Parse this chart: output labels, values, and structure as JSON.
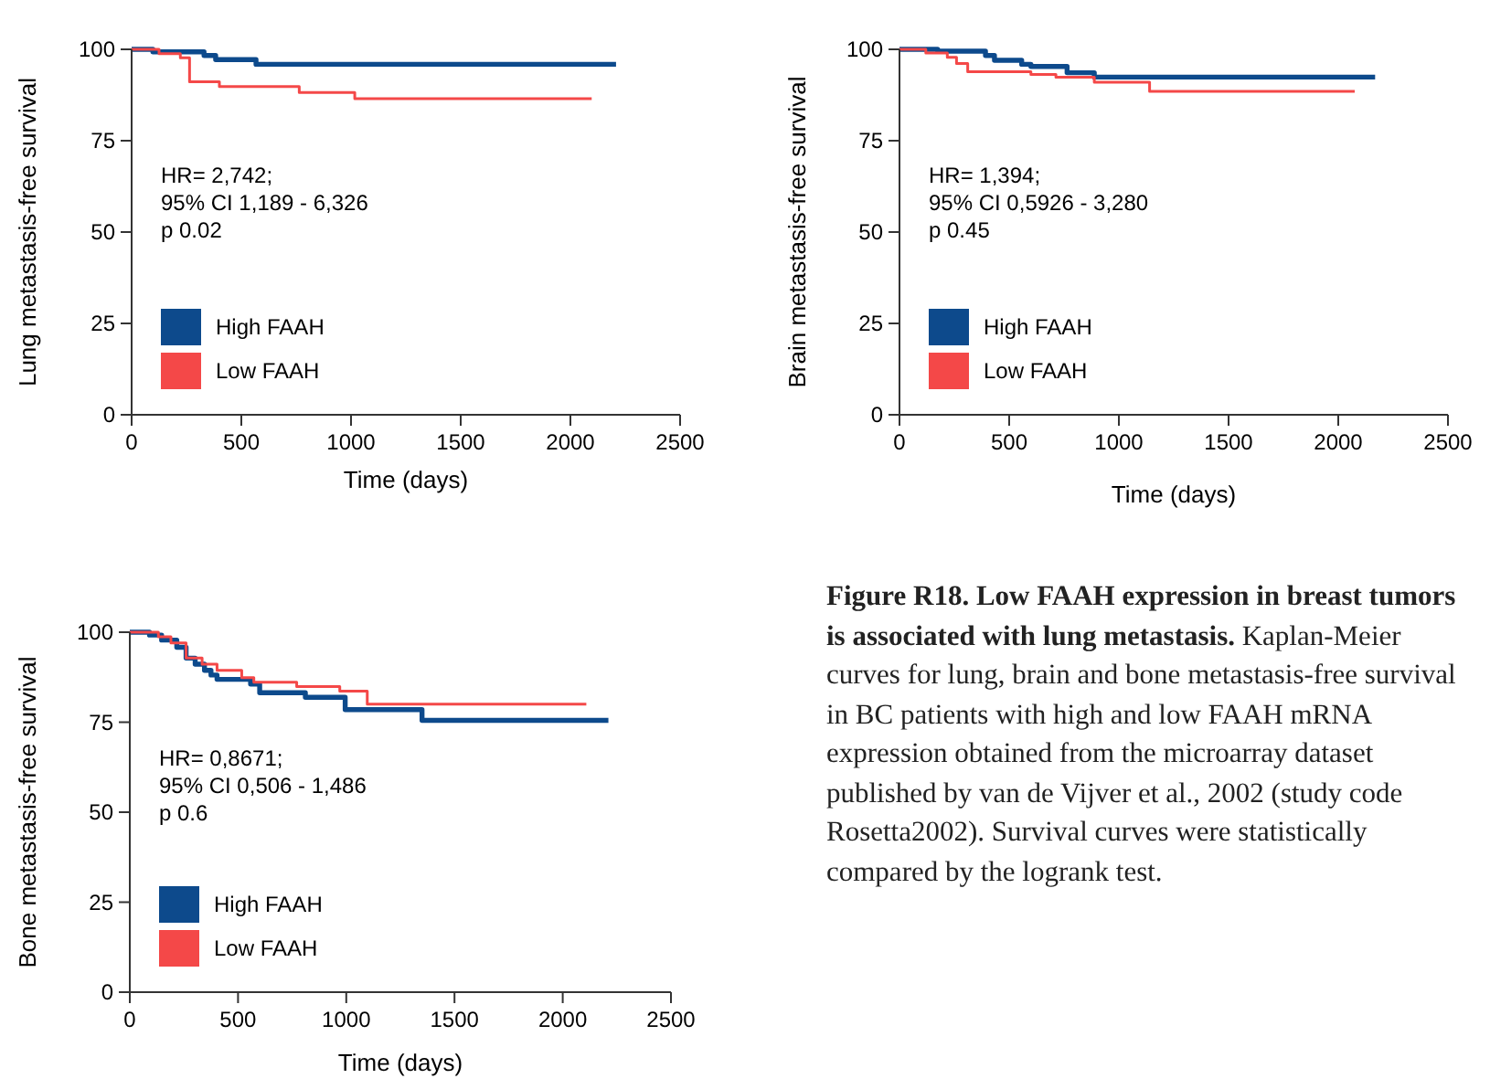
{
  "chart_data": [
    {
      "type": "step",
      "ylabel": "Lung metastasis-free survival",
      "xlabel": "Time (days)",
      "xlim": [
        0,
        2500
      ],
      "xticks": [
        0,
        500,
        1000,
        1500,
        2000,
        2500
      ],
      "ylim": [
        0,
        100
      ],
      "yticks": [
        0,
        25,
        50,
        75,
        100
      ],
      "legend": "bottom left",
      "annotations": [
        "HR= 2,742;",
        "95% CI 1,189 - 6,326",
        "p 0.02"
      ],
      "series": [
        {
          "name": "High FAAH",
          "color": "#0d4a8c",
          "x": [
            0,
            97,
            330,
            383,
            567,
            2208
          ],
          "values": [
            100,
            99.3,
            98.3,
            97.2,
            95.9,
            95.9
          ]
        },
        {
          "name": "Low FAAH",
          "color": "#f44848",
          "x": [
            0,
            125,
            222,
            264,
            400,
            764,
            1017,
            2097
          ],
          "values": [
            100,
            98.8,
            97.7,
            91.1,
            89.8,
            88.2,
            86.5,
            86.5
          ]
        }
      ]
    },
    {
      "type": "step",
      "ylabel": "Brain metastasis-free survival",
      "xlabel": "Time (days)",
      "xlim": [
        0,
        2500
      ],
      "xticks": [
        0,
        500,
        1000,
        1500,
        2000,
        2500
      ],
      "ylim": [
        0,
        100
      ],
      "yticks": [
        0,
        25,
        50,
        75,
        100
      ],
      "legend": "bottom left",
      "annotations": [
        "HR= 1,394;",
        "95% CI 0,5926 - 3,280",
        "p 0.45"
      ],
      "series": [
        {
          "name": "High FAAH",
          "color": "#0d4a8c",
          "x": [
            0,
            174,
            392,
            433,
            557,
            599,
            764,
            888,
            2168
          ],
          "values": [
            100,
            99.5,
            98.3,
            97,
            95.9,
            95.3,
            93.6,
            92.4,
            92.4
          ]
        },
        {
          "name": "Low FAAH",
          "color": "#f44848",
          "x": [
            0,
            120,
            218,
            260,
            311,
            599,
            713,
            888,
            1140,
            2075
          ],
          "values": [
            100,
            99,
            97.8,
            96.1,
            93.9,
            93.1,
            92.4,
            91,
            88.5,
            88.5
          ]
        }
      ]
    },
    {
      "type": "step",
      "ylabel": "Bone metastasis-free survival",
      "xlabel": "Time (days)",
      "xlim": [
        0,
        2500
      ],
      "xticks": [
        0,
        500,
        1000,
        1500,
        2000,
        2500
      ],
      "ylim": [
        0,
        100
      ],
      "yticks": [
        0,
        25,
        50,
        75,
        100
      ],
      "legend": "bottom left",
      "annotations": [
        "HR= 0,8671;",
        "95% CI 0,506 - 1,486",
        "p 0.6"
      ],
      "series": [
        {
          "name": "High FAAH",
          "color": "#0d4a8c",
          "x": [
            0,
            91,
            147,
            217,
            260,
            302,
            345,
            375,
            403,
            558,
            600,
            811,
            995,
            1350,
            2211
          ],
          "values": [
            100,
            99.2,
            97.8,
            95.8,
            92.8,
            91.1,
            89.4,
            88.1,
            86.9,
            85.6,
            83.2,
            81.9,
            78.5,
            75.5,
            75.5
          ]
        },
        {
          "name": "Low FAAH",
          "color": "#f44848",
          "x": [
            0,
            132,
            190,
            260,
            334,
            403,
            517,
            573,
            771,
            970,
            1097,
            2109
          ],
          "values": [
            100,
            98.7,
            97,
            92.8,
            91.1,
            89.4,
            87.4,
            86.1,
            84.9,
            83.6,
            80,
            80
          ]
        }
      ]
    },
    {
      "type": "other",
      "title": "Figure R18. Low FAAH expression in breast tumors is associated with lung metastasis.",
      "annotations": [
        "Kaplan-Meier curves for lung, brain and bone metastasis-free survival in BC patients with high and low FAAH mRNA expression obtained from the microarray dataset published by van de Vijver et al., 2002 (study code Rosetta2002). Survival curves were statistically compared by the logrank test."
      ]
    }
  ]
}
